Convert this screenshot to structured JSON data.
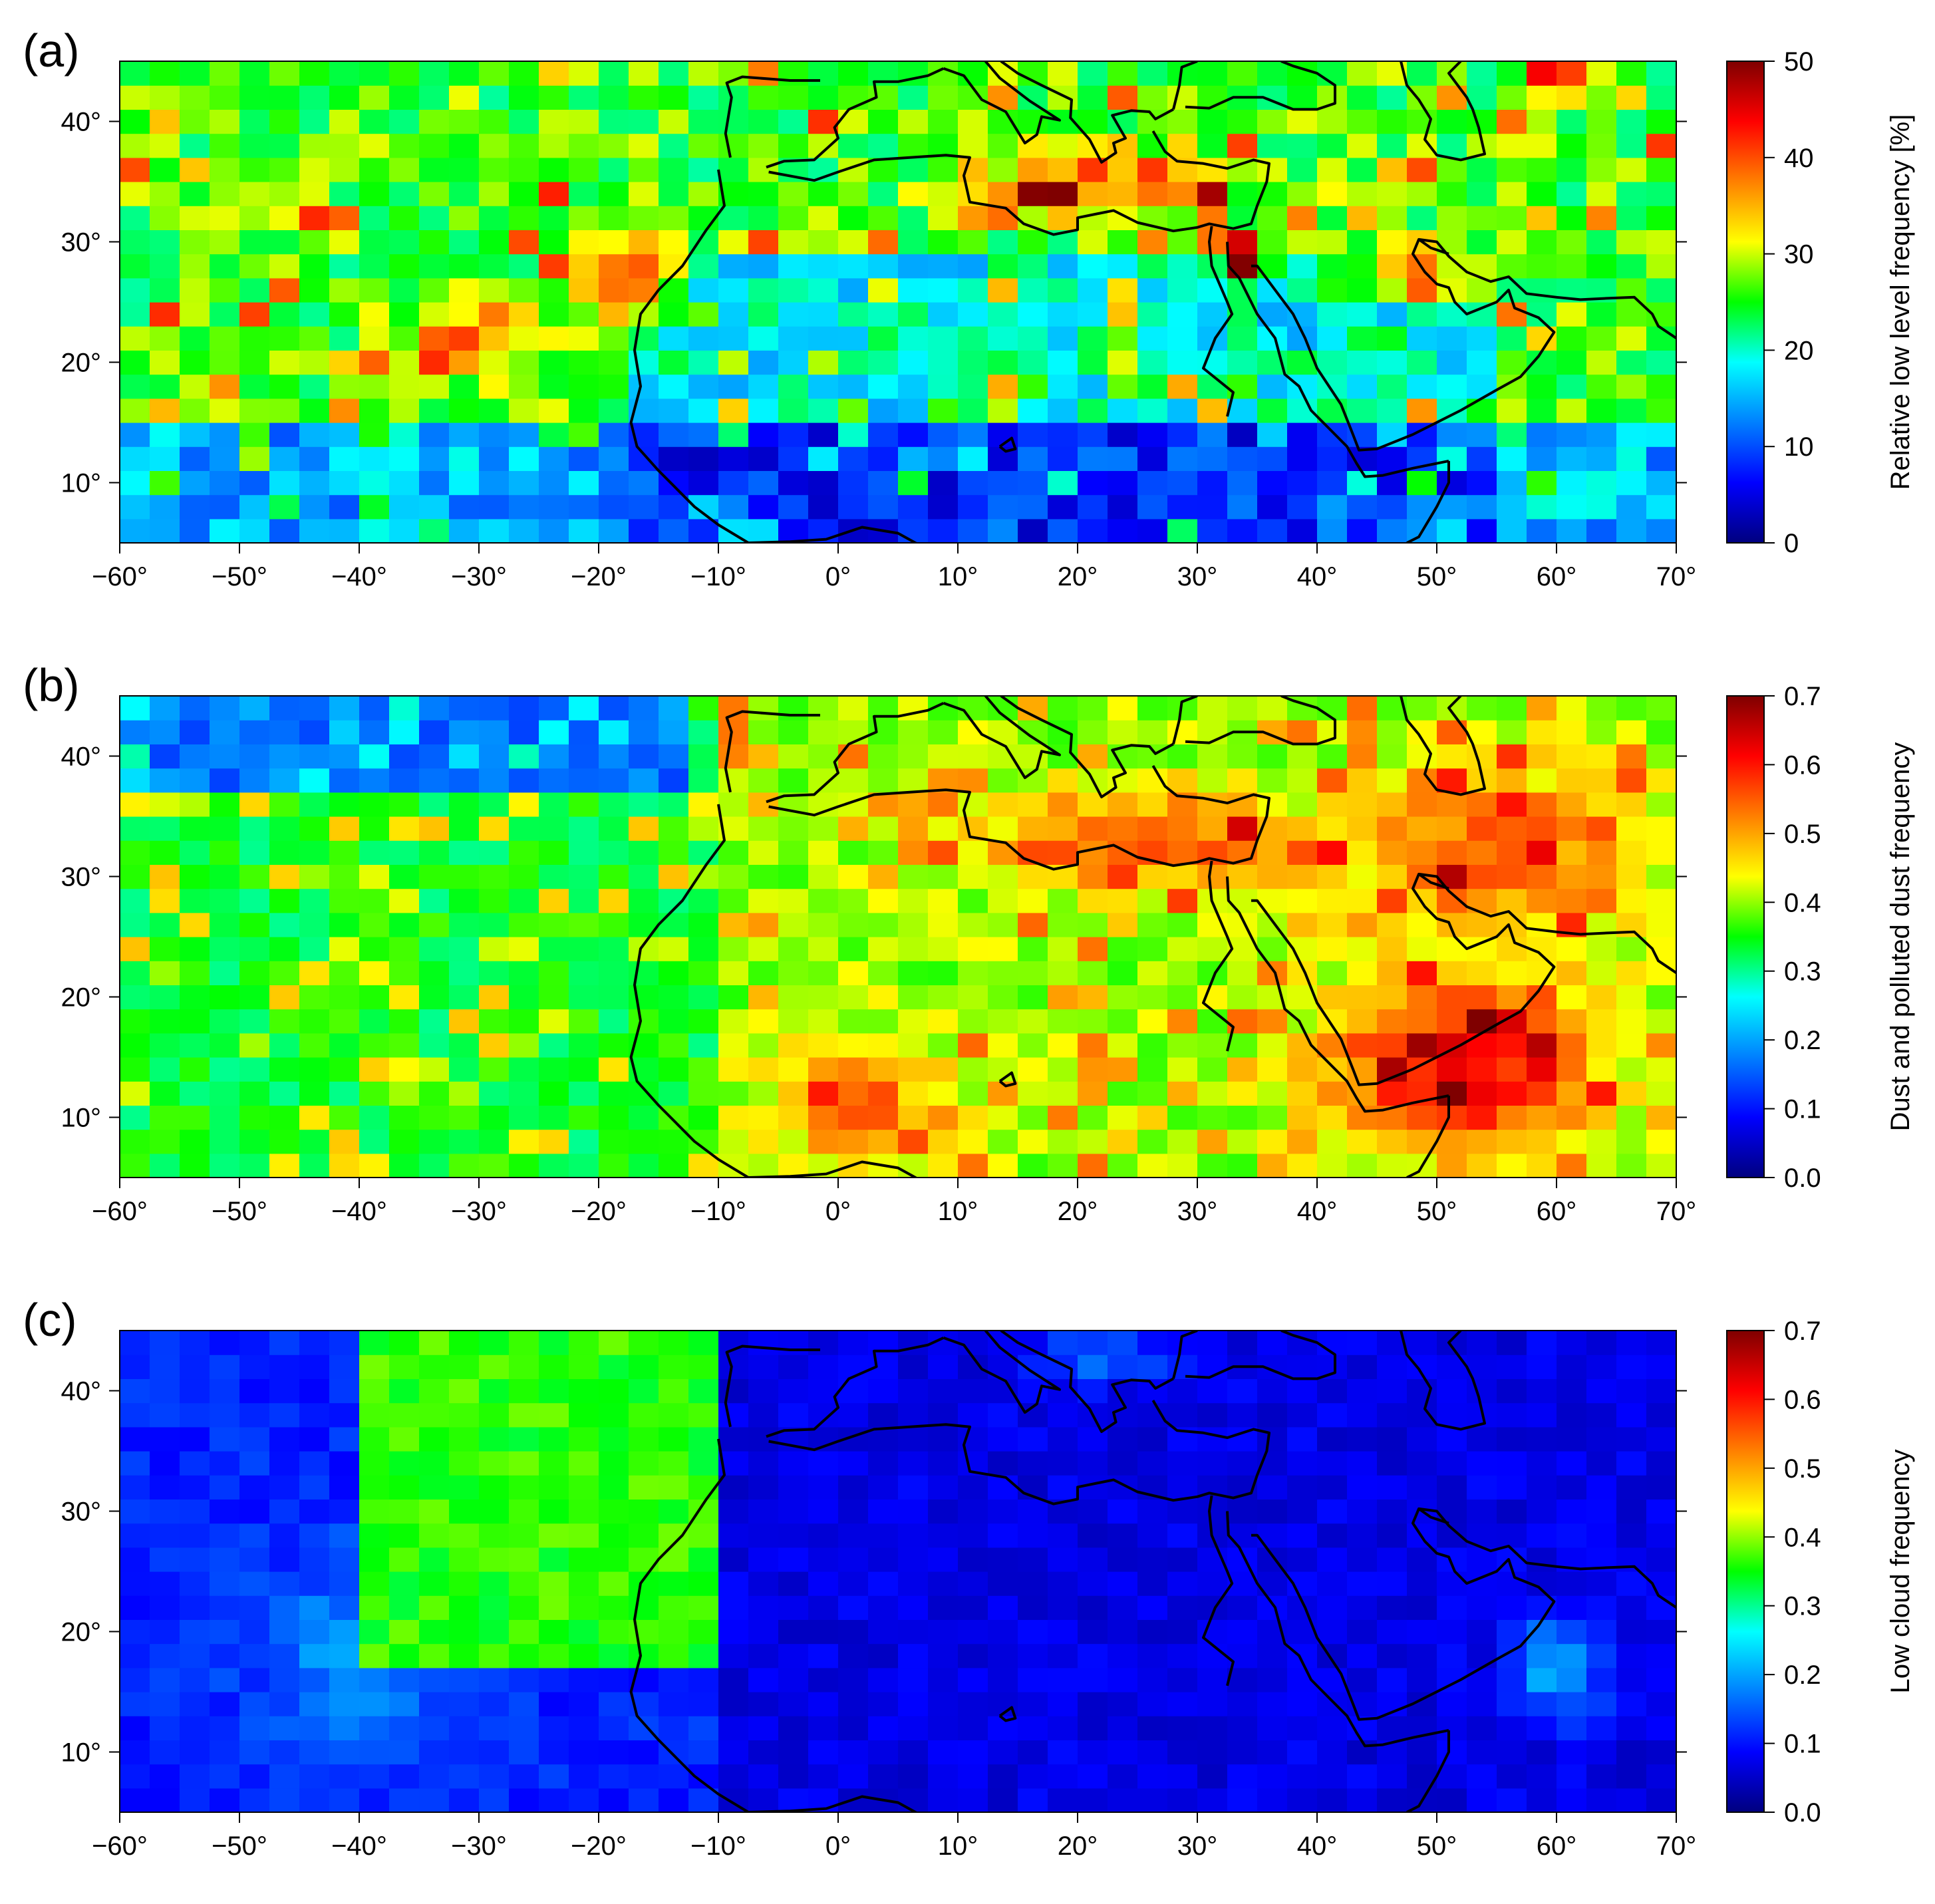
{
  "chart_data": [
    {
      "type": "heatmap",
      "panel_label": "(a)",
      "colorbar_label": "Relative low level frequency [%]",
      "colorbar_ticks": [
        "0",
        "10",
        "20",
        "30",
        "40",
        "50"
      ],
      "vmin": 0,
      "vmax": 50,
      "x_ticks": [
        "−60°",
        "−50°",
        "−40°",
        "−30°",
        "−20°",
        "−10°",
        "0°",
        "10°",
        "20°",
        "30°",
        "40°",
        "50°",
        "60°",
        "70°"
      ],
      "y_ticks": [
        "10°",
        "20°",
        "30°",
        "40°"
      ],
      "xlim": [
        -60,
        70
      ],
      "ylim": [
        5,
        45
      ],
      "grid_resolution_deg": [
        2.5,
        2
      ],
      "xlabel": "",
      "ylabel": ""
    },
    {
      "type": "heatmap",
      "panel_label": "(b)",
      "colorbar_label": "Dust and polluted dust frequency",
      "colorbar_ticks": [
        "0.0",
        "0.1",
        "0.2",
        "0.3",
        "0.4",
        "0.5",
        "0.6",
        "0.7"
      ],
      "vmin": 0,
      "vmax": 0.7,
      "x_ticks": [
        "−60°",
        "−50°",
        "−40°",
        "−30°",
        "−20°",
        "−10°",
        "0°",
        "10°",
        "20°",
        "30°",
        "40°",
        "50°",
        "60°",
        "70°"
      ],
      "y_ticks": [
        "10°",
        "20°",
        "30°",
        "40°"
      ],
      "xlim": [
        -60,
        70
      ],
      "ylim": [
        5,
        45
      ],
      "grid_resolution_deg": [
        2.5,
        2
      ],
      "xlabel": "",
      "ylabel": ""
    },
    {
      "type": "heatmap",
      "panel_label": "(c)",
      "colorbar_label": "Low cloud frequency",
      "colorbar_ticks": [
        "0.0",
        "0.1",
        "0.2",
        "0.3",
        "0.4",
        "0.5",
        "0.6",
        "0.7"
      ],
      "vmin": 0,
      "vmax": 0.7,
      "x_ticks": [
        "−60°",
        "−50°",
        "−40°",
        "−30°",
        "−20°",
        "−10°",
        "0°",
        "10°",
        "20°",
        "30°",
        "40°",
        "50°",
        "60°",
        "70°"
      ],
      "y_ticks": [
        "10°",
        "20°",
        "30°",
        "40°"
      ],
      "xlim": [
        -60,
        70
      ],
      "ylim": [
        5,
        45
      ],
      "grid_resolution_deg": [
        2.5,
        2
      ],
      "xlabel": "",
      "ylabel": ""
    }
  ],
  "colors": {
    "colormap": [
      "#00007f",
      "#0000ff",
      "#00ffff",
      "#00ff00",
      "#ffff00",
      "#ff0000",
      "#7f0000"
    ],
    "coastline": "#000000"
  }
}
